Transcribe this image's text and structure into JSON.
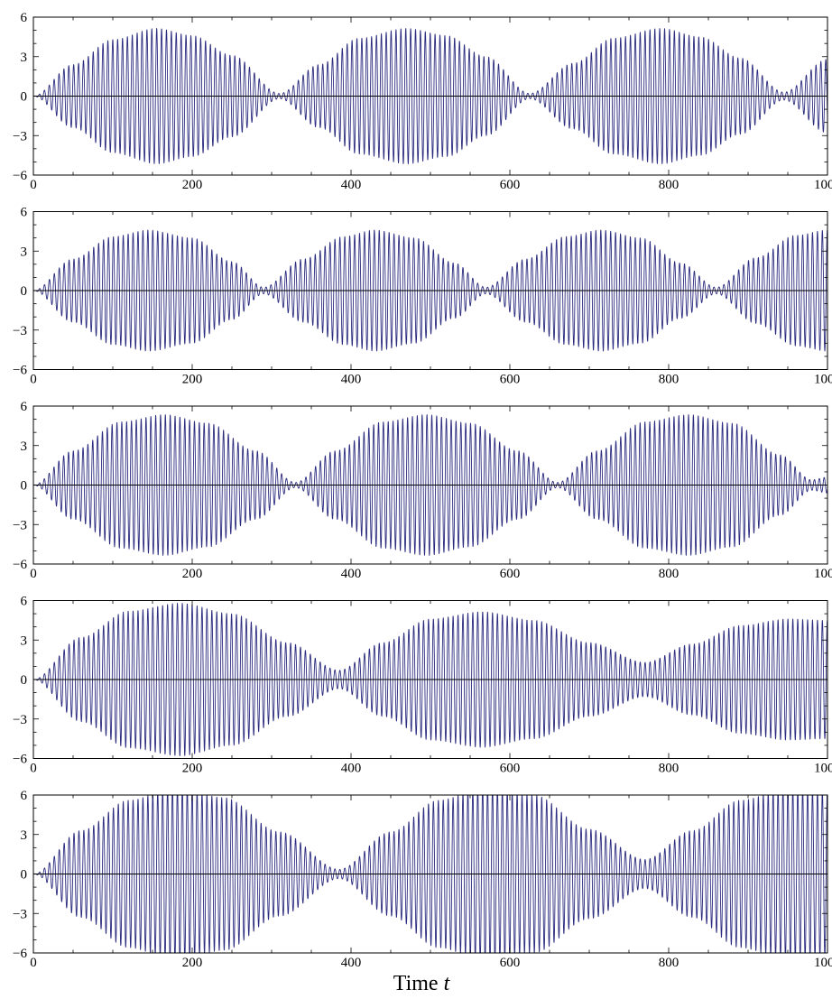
{
  "chart_data": [
    {
      "type": "line",
      "panel": 1,
      "x_range": [
        0,
        1000
      ],
      "ylim": [
        -6,
        6
      ],
      "x_ticks": [
        0,
        200,
        400,
        600,
        800,
        1000
      ],
      "y_ticks": [
        6,
        3,
        0,
        -3,
        -6
      ],
      "y_tick_labels": [
        "6",
        "3",
        "0",
        "−3",
        "−6"
      ],
      "grid": false,
      "series": [
        {
          "color": "#2b2b7f",
          "carrier_period": 6.15,
          "envelope_points": [
            [
              0,
              0
            ],
            [
              50,
              2.4
            ],
            [
              100,
              4.3
            ],
            [
              155,
              5.15
            ],
            [
              200,
              4.6
            ],
            [
              250,
              3.1
            ],
            [
              310,
              0.2
            ],
            [
              360,
              2.4
            ],
            [
              410,
              4.4
            ],
            [
              470,
              5.15
            ],
            [
              520,
              4.6
            ],
            [
              570,
              3.0
            ],
            [
              625,
              0.2
            ],
            [
              680,
              2.5
            ],
            [
              730,
              4.4
            ],
            [
              790,
              5.15
            ],
            [
              840,
              4.5
            ],
            [
              890,
              2.9
            ],
            [
              945,
              0.3
            ],
            [
              1000,
              2.8
            ]
          ],
          "end_value": -2.8
        }
      ]
    },
    {
      "type": "line",
      "panel": 2,
      "x_range": [
        0,
        1000
      ],
      "ylim": [
        -6,
        6
      ],
      "x_ticks": [
        0,
        200,
        400,
        600,
        800,
        1000
      ],
      "y_ticks": [
        6,
        3,
        0,
        -3,
        -6
      ],
      "y_tick_labels": [
        "6",
        "3",
        "0",
        "−3",
        "−6"
      ],
      "grid": false,
      "series": [
        {
          "color": "#2b2b7f",
          "carrier_period": 6.2,
          "envelope_points": [
            [
              0,
              0
            ],
            [
              50,
              2.4
            ],
            [
              100,
              4.1
            ],
            [
              145,
              4.6
            ],
            [
              200,
              4.0
            ],
            [
              250,
              2.2
            ],
            [
              290,
              0.25
            ],
            [
              340,
              2.4
            ],
            [
              390,
              4.1
            ],
            [
              430,
              4.6
            ],
            [
              480,
              4.0
            ],
            [
              530,
              2.1
            ],
            [
              570,
              0.25
            ],
            [
              620,
              2.4
            ],
            [
              670,
              4.1
            ],
            [
              715,
              4.6
            ],
            [
              765,
              4.0
            ],
            [
              815,
              2.1
            ],
            [
              860,
              0.25
            ],
            [
              910,
              2.5
            ],
            [
              960,
              4.2
            ],
            [
              1000,
              4.6
            ]
          ],
          "end_value": -2.7
        }
      ]
    },
    {
      "type": "line",
      "panel": 3,
      "x_range": [
        0,
        1000
      ],
      "ylim": [
        -6,
        6
      ],
      "x_ticks": [
        0,
        200,
        400,
        600,
        800,
        1000
      ],
      "y_ticks": [
        6,
        3,
        0,
        -3,
        -6
      ],
      "y_tick_labels": [
        "6",
        "3",
        "0",
        "−3",
        "−6"
      ],
      "grid": false,
      "series": [
        {
          "color": "#2b2b7f",
          "carrier_period": 6.1,
          "envelope_points": [
            [
              0,
              0
            ],
            [
              50,
              2.6
            ],
            [
              110,
              4.8
            ],
            [
              165,
              5.35
            ],
            [
              220,
              4.7
            ],
            [
              280,
              2.6
            ],
            [
              330,
              0.2
            ],
            [
              380,
              2.6
            ],
            [
              440,
              4.8
            ],
            [
              495,
              5.35
            ],
            [
              550,
              4.7
            ],
            [
              610,
              2.6
            ],
            [
              660,
              0.2
            ],
            [
              710,
              2.6
            ],
            [
              770,
              4.8
            ],
            [
              825,
              5.35
            ],
            [
              880,
              4.7
            ],
            [
              940,
              2.3
            ],
            [
              980,
              0.4
            ],
            [
              1000,
              0.6
            ]
          ],
          "end_value": -0.6
        }
      ]
    },
    {
      "type": "line",
      "panel": 4,
      "x_range": [
        0,
        1000
      ],
      "ylim": [
        -6,
        6
      ],
      "x_ticks": [
        0,
        200,
        400,
        600,
        800,
        1000
      ],
      "y_ticks": [
        6,
        3,
        0,
        -3,
        -6
      ],
      "y_tick_labels": [
        "6",
        "3",
        "0",
        "−3",
        "−6"
      ],
      "grid": false,
      "series": [
        {
          "color": "#2b2b7f",
          "carrier_period": 6.2,
          "envelope_points": [
            [
              0,
              0
            ],
            [
              60,
              3.2
            ],
            [
              120,
              5.2
            ],
            [
              185,
              5.8
            ],
            [
              250,
              5.0
            ],
            [
              320,
              2.8
            ],
            [
              385,
              0.7
            ],
            [
              440,
              2.8
            ],
            [
              500,
              4.6
            ],
            [
              565,
              5.15
            ],
            [
              630,
              4.5
            ],
            [
              700,
              2.8
            ],
            [
              770,
              1.3
            ],
            [
              830,
              2.7
            ],
            [
              890,
              4.1
            ],
            [
              950,
              4.6
            ],
            [
              1000,
              4.5
            ]
          ],
          "end_value": -1.7
        }
      ]
    },
    {
      "type": "line",
      "panel": 5,
      "x_range": [
        0,
        1000
      ],
      "ylim": [
        -6,
        6
      ],
      "x_ticks": [
        0,
        200,
        400,
        600,
        800,
        1000
      ],
      "y_ticks": [
        6,
        3,
        0,
        -3,
        -6
      ],
      "y_tick_labels": [
        "6",
        "3",
        "0",
        "−3",
        "−6"
      ],
      "grid": false,
      "series": [
        {
          "color": "#2b2b7f",
          "carrier_period": 6.2,
          "envelope_points": [
            [
              0,
              0
            ],
            [
              60,
              3.3
            ],
            [
              120,
              5.6
            ],
            [
              180,
              6.6
            ],
            [
              240,
              5.8
            ],
            [
              310,
              3.2
            ],
            [
              385,
              0.35
            ],
            [
              450,
              3.2
            ],
            [
              510,
              5.6
            ],
            [
              570,
              6.6
            ],
            [
              630,
              6.0
            ],
            [
              700,
              3.4
            ],
            [
              770,
              1.1
            ],
            [
              830,
              3.3
            ],
            [
              890,
              5.6
            ],
            [
              950,
              6.5
            ],
            [
              1000,
              6.3
            ]
          ],
          "end_value": -1.4
        }
      ]
    }
  ],
  "x_axis_title": {
    "prefix": "Time ",
    "symbol": "t"
  }
}
